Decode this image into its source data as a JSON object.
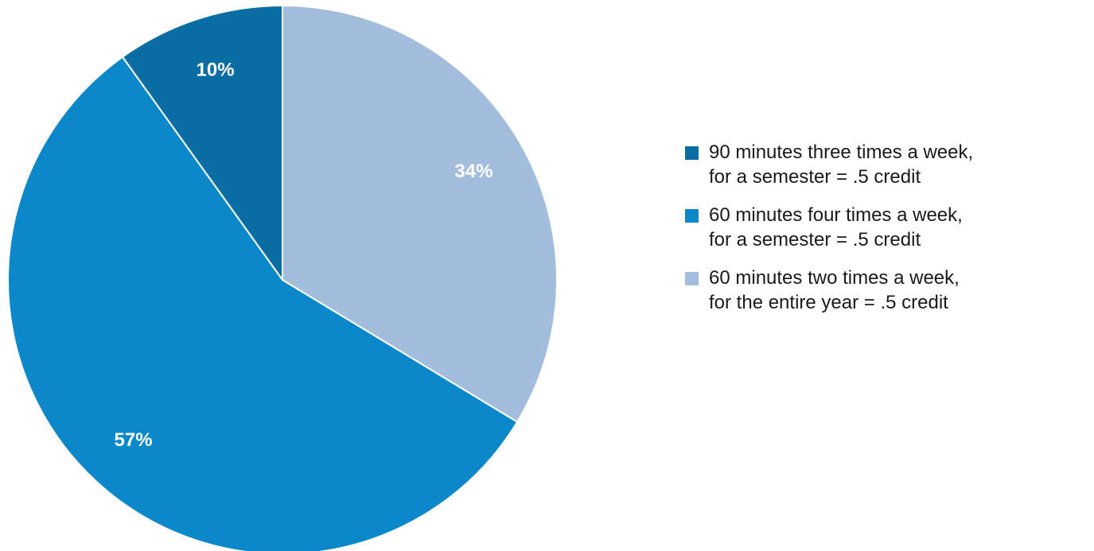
{
  "chart_data": {
    "type": "pie",
    "title": "",
    "categories": [
      "90 minutes three times a week, for a semester = .5 credit",
      "60 minutes four times a week, for a semester = .5 credit",
      "60 minutes two times a week, for the entire year = .5 credit"
    ],
    "values": [
      10,
      57,
      34
    ],
    "data_labels": [
      "10%",
      "57%",
      "34%"
    ],
    "colors": [
      "#0a6ea5",
      "#0a88c9",
      "#a3bedd"
    ],
    "legend_position": "right",
    "legend": [
      {
        "line1": "90 minutes three times a week,",
        "line2": "for a semester = .5 credit",
        "color": "#0a6ea5"
      },
      {
        "line1": "60 minutes four times a week,",
        "line2": "for a semester = .5 credit",
        "color": "#0a88c9"
      },
      {
        "line1": "60 minutes two times a week,",
        "line2": "for the entire year = .5 credit",
        "color": "#a3bedd"
      }
    ]
  }
}
